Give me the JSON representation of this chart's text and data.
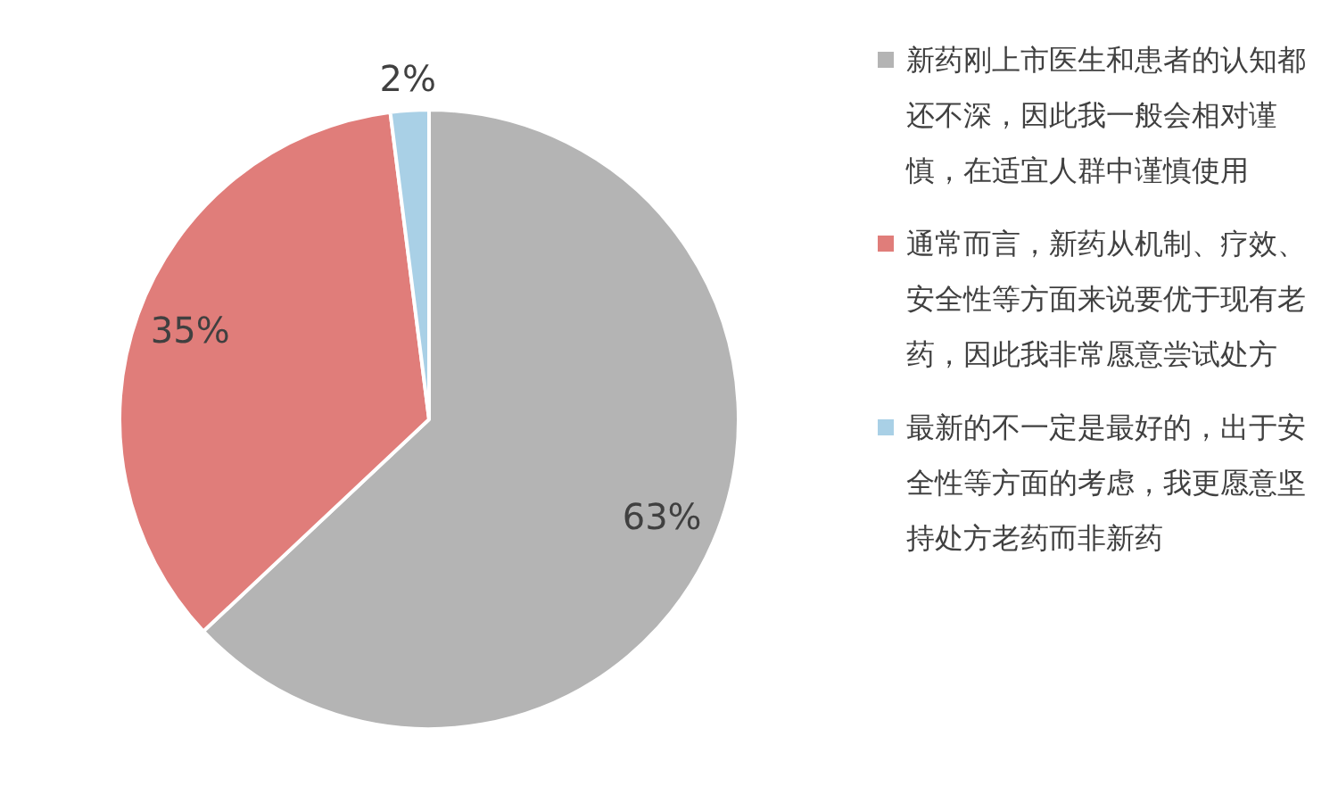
{
  "chart_data": {
    "type": "pie",
    "categories": [
      "新药刚上市医生和患者的认知都还不深，因此我一般会相对谨慎，在适宜人群中谨慎使用",
      "通常而言，新药从机制、疗效、安全性等方面来说要优于现有老药，因此我非常愿意尝试处方",
      "最新的不一定是最好的，出于安全性等方面的考虑，我更愿意坚持处方老药而非新药"
    ],
    "values": [
      63,
      35,
      2
    ],
    "colors": [
      "#b4b4b4",
      "#e07d7a",
      "#a9d0e6"
    ],
    "value_labels": [
      "63%",
      "35%",
      "2%"
    ],
    "legend": "right"
  }
}
